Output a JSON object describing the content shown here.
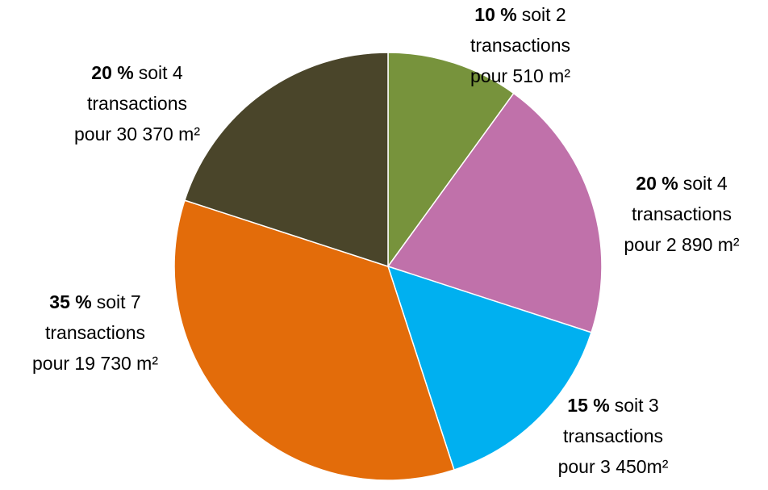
{
  "chart_data": {
    "type": "pie",
    "values": [
      10,
      20,
      15,
      35,
      20
    ],
    "value_labels": [
      "10 %",
      "20 %",
      "15 %",
      "35 %",
      "20 %"
    ],
    "labels": [
      [
        "soit 2",
        "transactions",
        "pour 510 m²"
      ],
      [
        "soit 4",
        "transactions",
        "pour 2 890 m²"
      ],
      [
        "soit 3",
        "transactions",
        "pour 3 450m²"
      ],
      [
        "soit 7",
        "transactions",
        "pour 19 730 m²"
      ],
      [
        "soit 4",
        "transactions",
        "pour 30 370 m²"
      ]
    ],
    "colors": [
      "#77933c",
      "#c071aa",
      "#00b0f0",
      "#e36c0a",
      "#4a452a"
    ]
  }
}
